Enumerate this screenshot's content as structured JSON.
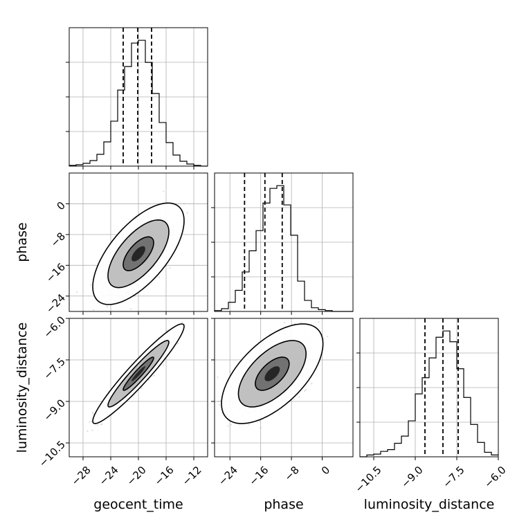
{
  "chart_data": {
    "type": "corner",
    "parameters": [
      "geocent_time",
      "phase",
      "luminosity_distance"
    ],
    "axis_labels": {
      "geocent_time": "geocent_time",
      "phase": "phase",
      "luminosity_distance": "luminosity_distance"
    },
    "ranges": {
      "geocent_time": [
        -30,
        -10
      ],
      "phase": [
        -28,
        8
      ],
      "luminosity_distance": [
        -11.0,
        -6.0
      ]
    },
    "ticks": {
      "geocent_time": [
        "-28",
        "-24",
        "-20",
        "-16",
        "-12"
      ],
      "phase": [
        "-24",
        "-16",
        "-8",
        "0"
      ],
      "luminosity_distance": [
        "-10.5",
        "-9.0",
        "-7.5",
        "-6.0"
      ]
    },
    "grid": true,
    "quantiles": {
      "geocent_time": [
        -22.2,
        -20.1,
        -18.1
      ],
      "phase": [
        -20.2,
        -14.9,
        -10.4
      ],
      "luminosity_distance": [
        -8.65,
        -8.0,
        -7.45
      ]
    },
    "marginals": {
      "geocent_time": {
        "bin_edges": [
          -30,
          -29,
          -28,
          -27,
          -26,
          -25,
          -24,
          -23,
          -22,
          -21,
          -20,
          -19,
          -18,
          -17,
          -16,
          -15,
          -14,
          -13,
          -12,
          -11,
          -10
        ],
        "counts": [
          1,
          2,
          4,
          8,
          17,
          35,
          65,
          110,
          144,
          178,
          182,
          150,
          105,
          63,
          34,
          16,
          7,
          3,
          1,
          0
        ]
      },
      "phase": {
        "bin_edges": [
          -28,
          -26.2,
          -24.4,
          -22.6,
          -20.8,
          -19,
          -17.2,
          -15.4,
          -13.6,
          -11.8,
          -10,
          -8.2,
          -6.4,
          -4.6,
          -2.8,
          -1,
          0.8,
          2.6,
          4.8,
          6.4,
          8
        ],
        "counts": [
          1,
          3,
          10,
          23,
          43,
          66,
          88,
          118,
          134,
          137,
          116,
          83,
          33,
          12,
          4,
          2,
          1,
          0,
          0,
          0
        ]
      },
      "luminosity_distance": {
        "bin_edges": [
          -11.0,
          -10.75,
          -10.5,
          -10.25,
          -10.0,
          -9.75,
          -9.5,
          -9.25,
          -9.0,
          -8.75,
          -8.5,
          -8.25,
          -8.0,
          -7.75,
          -7.5,
          -7.25,
          -7.0,
          -6.75,
          -6.5,
          -6.25,
          -6.0
        ],
        "counts": [
          0,
          2,
          3,
          6,
          8,
          15,
          23,
          40,
          70,
          88,
          110,
          133,
          140,
          128,
          98,
          66,
          36,
          16,
          5,
          2
        ]
      }
    },
    "joint_2d": [
      {
        "x": "geocent_time",
        "y": "phase",
        "mean": [
          -20.0,
          -13.0
        ],
        "std": [
          2.2,
          4.4
        ],
        "correlation": 0.65,
        "contour_sigma_levels": [
          1,
          2,
          3
        ]
      },
      {
        "x": "geocent_time",
        "y": "luminosity_distance",
        "mean": [
          -20.0,
          -8.0
        ],
        "std": [
          2.2,
          0.6
        ],
        "correlation": 0.95,
        "contour_sigma_levels": [
          1,
          2,
          3
        ]
      },
      {
        "x": "phase",
        "y": "luminosity_distance",
        "mean": [
          -13.0,
          -8.0
        ],
        "std": [
          4.4,
          0.6
        ],
        "correlation": 0.6,
        "contour_sigma_levels": [
          1,
          2,
          3
        ]
      }
    ]
  }
}
